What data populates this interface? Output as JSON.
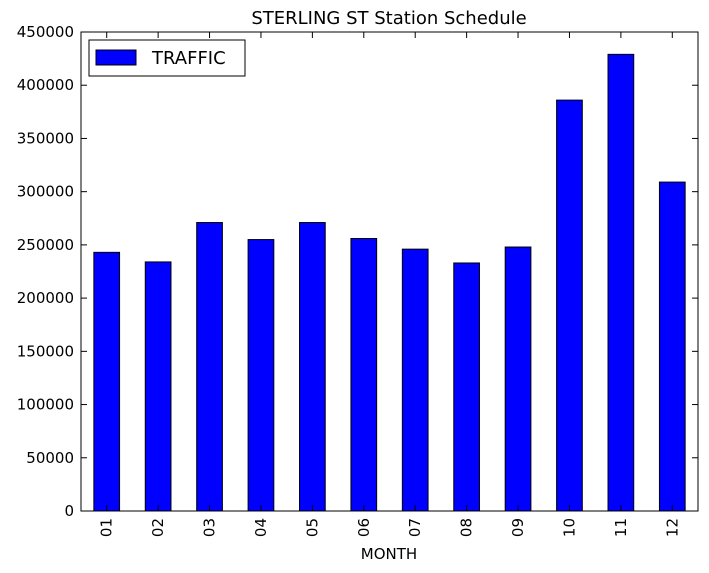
{
  "chart_data": {
    "type": "bar",
    "title": "STERLING ST Station Schedule",
    "xlabel": "MONTH",
    "ylabel": "",
    "categories": [
      "01",
      "02",
      "03",
      "04",
      "05",
      "06",
      "07",
      "08",
      "09",
      "10",
      "11",
      "12"
    ],
    "series": [
      {
        "name": "TRAFFIC",
        "color": "#0000ff",
        "values": [
          243000,
          234000,
          271000,
          255000,
          271000,
          256000,
          246000,
          233000,
          248000,
          386000,
          429000,
          309000
        ]
      }
    ],
    "ylim": [
      0,
      450000
    ],
    "yticks": [
      "0",
      "50000",
      "100000",
      "150000",
      "200000",
      "250000",
      "300000",
      "350000",
      "400000",
      "450000"
    ],
    "grid": false,
    "legend_position": "top-left"
  }
}
